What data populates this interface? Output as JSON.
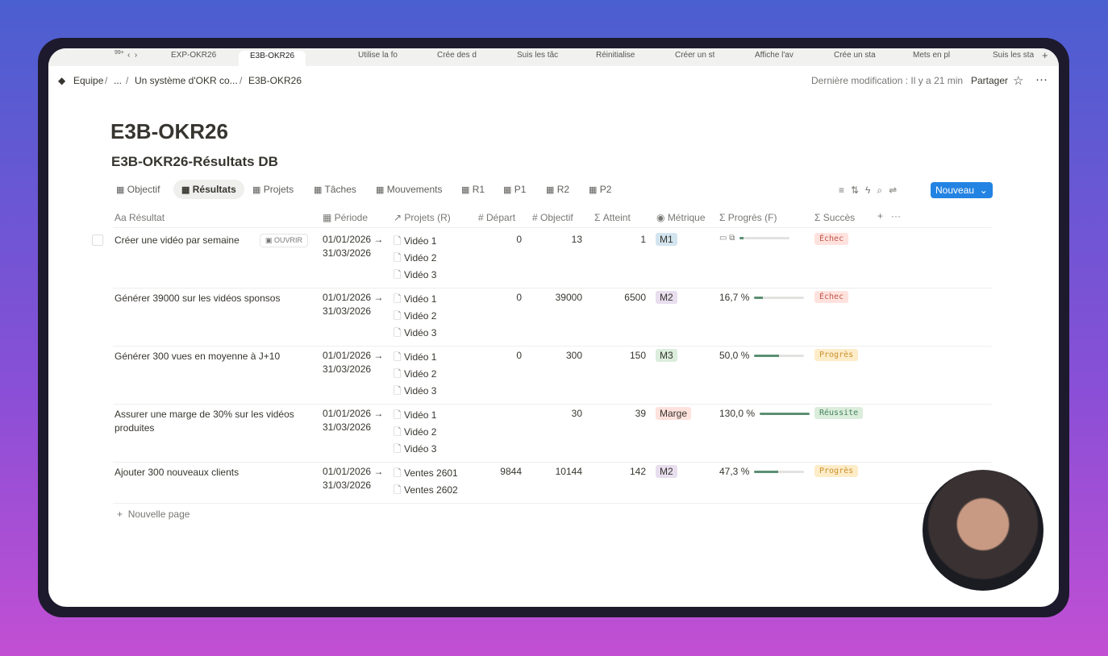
{
  "browser_tabs": [
    "EXP-OKR26",
    "E3B-OKR26",
    "Utilise la fo",
    "Crée des d",
    "Suis les tâc",
    "Réinitialise",
    "Créer un st",
    "Affiche l'av",
    "Crée un sta",
    "Mets en pl",
    "Suis les sta"
  ],
  "active_tab": 1,
  "tab_badge": "99+",
  "breadcrumb": [
    "Equipe",
    "...",
    "Un système d'OKR co...",
    "E3B-OKR26"
  ],
  "last_modified": "Dernière modification : Il y a 21 min",
  "share": "Partager",
  "page_title": "E3B-OKR26",
  "database_title": "E3B-OKR26-Résultats DB",
  "views": [
    "Objectif",
    "Résultats",
    "Projets",
    "Tâches",
    "Mouvements",
    "R1",
    "P1",
    "R2",
    "P2"
  ],
  "active_view": 1,
  "new_button": "Nouveau",
  "open_button": "OUVRIR",
  "columns": [
    "Résultat",
    "Période",
    "Projets (R)",
    "Départ",
    "Objectif",
    "Atteint",
    "Métrique",
    "Progrès (F)",
    "Succès"
  ],
  "rows": [
    {
      "resultat": "Créer une vidéo par semaine",
      "periode_start": "01/01/2026 →",
      "periode_end": "31/03/2026",
      "projets": [
        "Vidéo 1",
        "Vidéo 2",
        "Vidéo 3"
      ],
      "depart": 0,
      "objectif": 13,
      "atteint": 1,
      "metrique": {
        "label": "M1",
        "color": "#d3e5ef"
      },
      "progres": {
        "value": 7.7
      },
      "succes": {
        "label": "Échec",
        "color": "red"
      }
    },
    {
      "resultat": "Générer 39000 sur les vidéos sponsos",
      "periode_start": "01/01/2026 →",
      "periode_end": "31/03/2026",
      "projets": [
        "Vidéo 1",
        "Vidéo 2",
        "Vidéo 3"
      ],
      "depart": 0,
      "objectif": 39000,
      "atteint": 6500,
      "metrique": {
        "label": "M2",
        "color": "#e8deee"
      },
      "progres": {
        "value": 16.7,
        "label": "16,7 %"
      },
      "succes": {
        "label": "Échec",
        "color": "red"
      }
    },
    {
      "resultat": "Générer 300 vues en moyenne à J+10",
      "periode_start": "01/01/2026 →",
      "periode_end": "31/03/2026",
      "projets": [
        "Vidéo 1",
        "Vidéo 2",
        "Vidéo 3"
      ],
      "depart": 0,
      "objectif": 300,
      "atteint": 150,
      "metrique": {
        "label": "M3",
        "color": "#dbeddb"
      },
      "progres": {
        "value": 50,
        "label": "50,0 %"
      },
      "succes": {
        "label": "Progrès",
        "color": "yellow"
      }
    },
    {
      "resultat": "Assurer une marge de 30% sur les vidéos produites",
      "periode_start": "01/01/2026 →",
      "periode_end": "31/03/2026",
      "projets": [
        "Vidéo 1",
        "Vidéo 2",
        "Vidéo 3"
      ],
      "objectif": 30,
      "atteint": 39,
      "metrique": {
        "label": "Marge",
        "color": "#ffe2dd"
      },
      "progres": {
        "value": 130,
        "label": "130,0 %"
      },
      "succes": {
        "label": "Réussite",
        "color": "green"
      }
    },
    {
      "resultat": "Ajouter 300 nouveaux clients",
      "periode_start": "01/01/2026 →",
      "periode_end": "31/03/2026",
      "projets": [
        "Ventes 2601",
        "Ventes 2602"
      ],
      "depart": 9844,
      "objectif": 10144,
      "atteint": 142,
      "metrique": {
        "label": "M2",
        "color": "#e8deee"
      },
      "progres": {
        "value": 47.3,
        "label": "47,3 %"
      },
      "succes": {
        "label": "Progrès",
        "color": "yellow"
      }
    }
  ],
  "new_page": "Nouvelle page"
}
